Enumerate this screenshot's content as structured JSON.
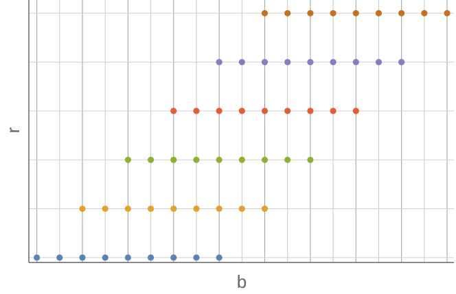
{
  "chart_data": {
    "type": "scatter",
    "title": "",
    "xlabel": "b",
    "ylabel": "r",
    "x_ticks": [
      0,
      1,
      2,
      3,
      4,
      5,
      6,
      7,
      8,
      9,
      10,
      11,
      12,
      13,
      14,
      15,
      16,
      17,
      18
    ],
    "y_ticks": [
      0,
      1,
      2,
      3,
      4,
      5
    ],
    "xlim": [
      -0.35,
      18.3
    ],
    "ylim": [
      -0.1,
      5.27
    ],
    "grid": true,
    "legend": "none",
    "series": [
      {
        "color": "#5b82b5",
        "y": 0,
        "x": [
          0,
          1,
          2,
          3,
          4,
          5,
          6,
          7,
          8
        ]
      },
      {
        "color": "#e6a12b",
        "y": 1,
        "x": [
          2,
          3,
          4,
          5,
          6,
          7,
          8,
          9,
          10
        ]
      },
      {
        "color": "#8fb032",
        "y": 2,
        "x": [
          4,
          5,
          6,
          7,
          8,
          9,
          10,
          11,
          12
        ]
      },
      {
        "color": "#e55d35",
        "y": 3,
        "x": [
          6,
          7,
          8,
          9,
          10,
          11,
          12,
          13,
          14
        ]
      },
      {
        "color": "#8d7ac0",
        "y": 4,
        "x": [
          8,
          9,
          10,
          11,
          12,
          13,
          14,
          15,
          16
        ]
      },
      {
        "color": "#c6711f",
        "y": 5,
        "x": [
          10,
          11,
          12,
          13,
          14,
          15,
          16,
          17,
          18
        ]
      }
    ]
  }
}
